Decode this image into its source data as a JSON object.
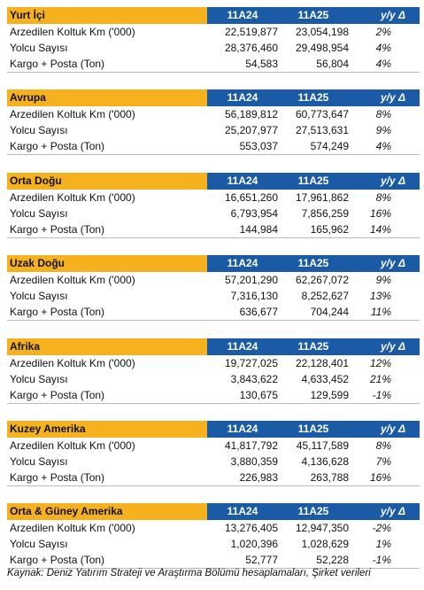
{
  "sections": [
    {
      "title": "Yurt İçi",
      "columns": [
        "11A24",
        "11A25",
        "y/y Δ"
      ],
      "rows": [
        [
          "Arzedilen Koltuk Km ('000)",
          "22,519,877",
          "23,054,198",
          "2%"
        ],
        [
          "Yolcu Sayısı",
          "28,376,460",
          "29,498,954",
          "4%"
        ],
        [
          "Kargo + Posta (Ton)",
          "54,583",
          "56,804",
          "4%"
        ]
      ]
    },
    {
      "title": "Avrupa",
      "columns": [
        "11A24",
        "11A25",
        "y/y Δ"
      ],
      "rows": [
        [
          "Arzedilen Koltuk Km ('000)",
          "56,189,812",
          "60,773,647",
          "8%"
        ],
        [
          "Yolcu Sayısı",
          "25,207,977",
          "27,513,631",
          "9%"
        ],
        [
          "Kargo + Posta (Ton)",
          "553,037",
          "574,249",
          "4%"
        ]
      ]
    },
    {
      "title": "Orta Doğu",
      "columns": [
        "11A24",
        "11A25",
        "y/y Δ"
      ],
      "rows": [
        [
          "Arzedilen Koltuk Km ('000)",
          "16,651,260",
          "17,961,862",
          "8%"
        ],
        [
          "Yolcu Sayısı",
          "6,793,954",
          "7,856,259",
          "16%"
        ],
        [
          "Kargo + Posta (Ton)",
          "144,984",
          "165,962",
          "14%"
        ]
      ]
    },
    {
      "title": "Uzak Doğu",
      "columns": [
        "11A24",
        "11A25",
        "y/y Δ"
      ],
      "rows": [
        [
          "Arzedilen Koltuk Km ('000)",
          "57,201,290",
          "62,267,072",
          "9%"
        ],
        [
          "Yolcu Sayısı",
          "7,316,130",
          "8,252,627",
          "13%"
        ],
        [
          "Kargo + Posta (Ton)",
          "636,677",
          "704,244",
          "11%"
        ]
      ]
    },
    {
      "title": "Afrika",
      "columns": [
        "11A24",
        "11A25",
        "y/y Δ"
      ],
      "rows": [
        [
          "Arzedilen Koltuk Km ('000)",
          "19,727,025",
          "22,128,401",
          "12%"
        ],
        [
          "Yolcu Sayısı",
          "3,843,622",
          "4,633,452",
          "21%"
        ],
        [
          "Kargo + Posta (Ton)",
          "130,675",
          "129,599",
          "-1%"
        ]
      ]
    },
    {
      "title": "Kuzey Amerika",
      "columns": [
        "11A24",
        "11A25",
        "y/y Δ"
      ],
      "rows": [
        [
          "Arzedilen Koltuk Km ('000)",
          "41,817,792",
          "45,117,589",
          "8%"
        ],
        [
          "Yolcu Sayısı",
          "3,880,359",
          "4,136,628",
          "7%"
        ],
        [
          "Kargo + Posta (Ton)",
          "226,983",
          "263,788",
          "16%"
        ]
      ]
    },
    {
      "title": "Orta & Güney Amerika",
      "columns": [
        "11A24",
        "11A25",
        "y/y Δ"
      ],
      "rows": [
        [
          "Arzedilen Koltuk Km ('000)",
          "13,276,405",
          "12,947,350",
          "-2%"
        ],
        [
          "Yolcu Sayısı",
          "1,020,396",
          "1,028,629",
          "1%"
        ],
        [
          "Kargo + Posta (Ton)",
          "52,777",
          "52,228",
          "-1%"
        ]
      ]
    }
  ],
  "source": "Kaynak: Deniz Yatırım Strateji ve Araştırma Bölümü hesaplamaları, Şirket verileri"
}
